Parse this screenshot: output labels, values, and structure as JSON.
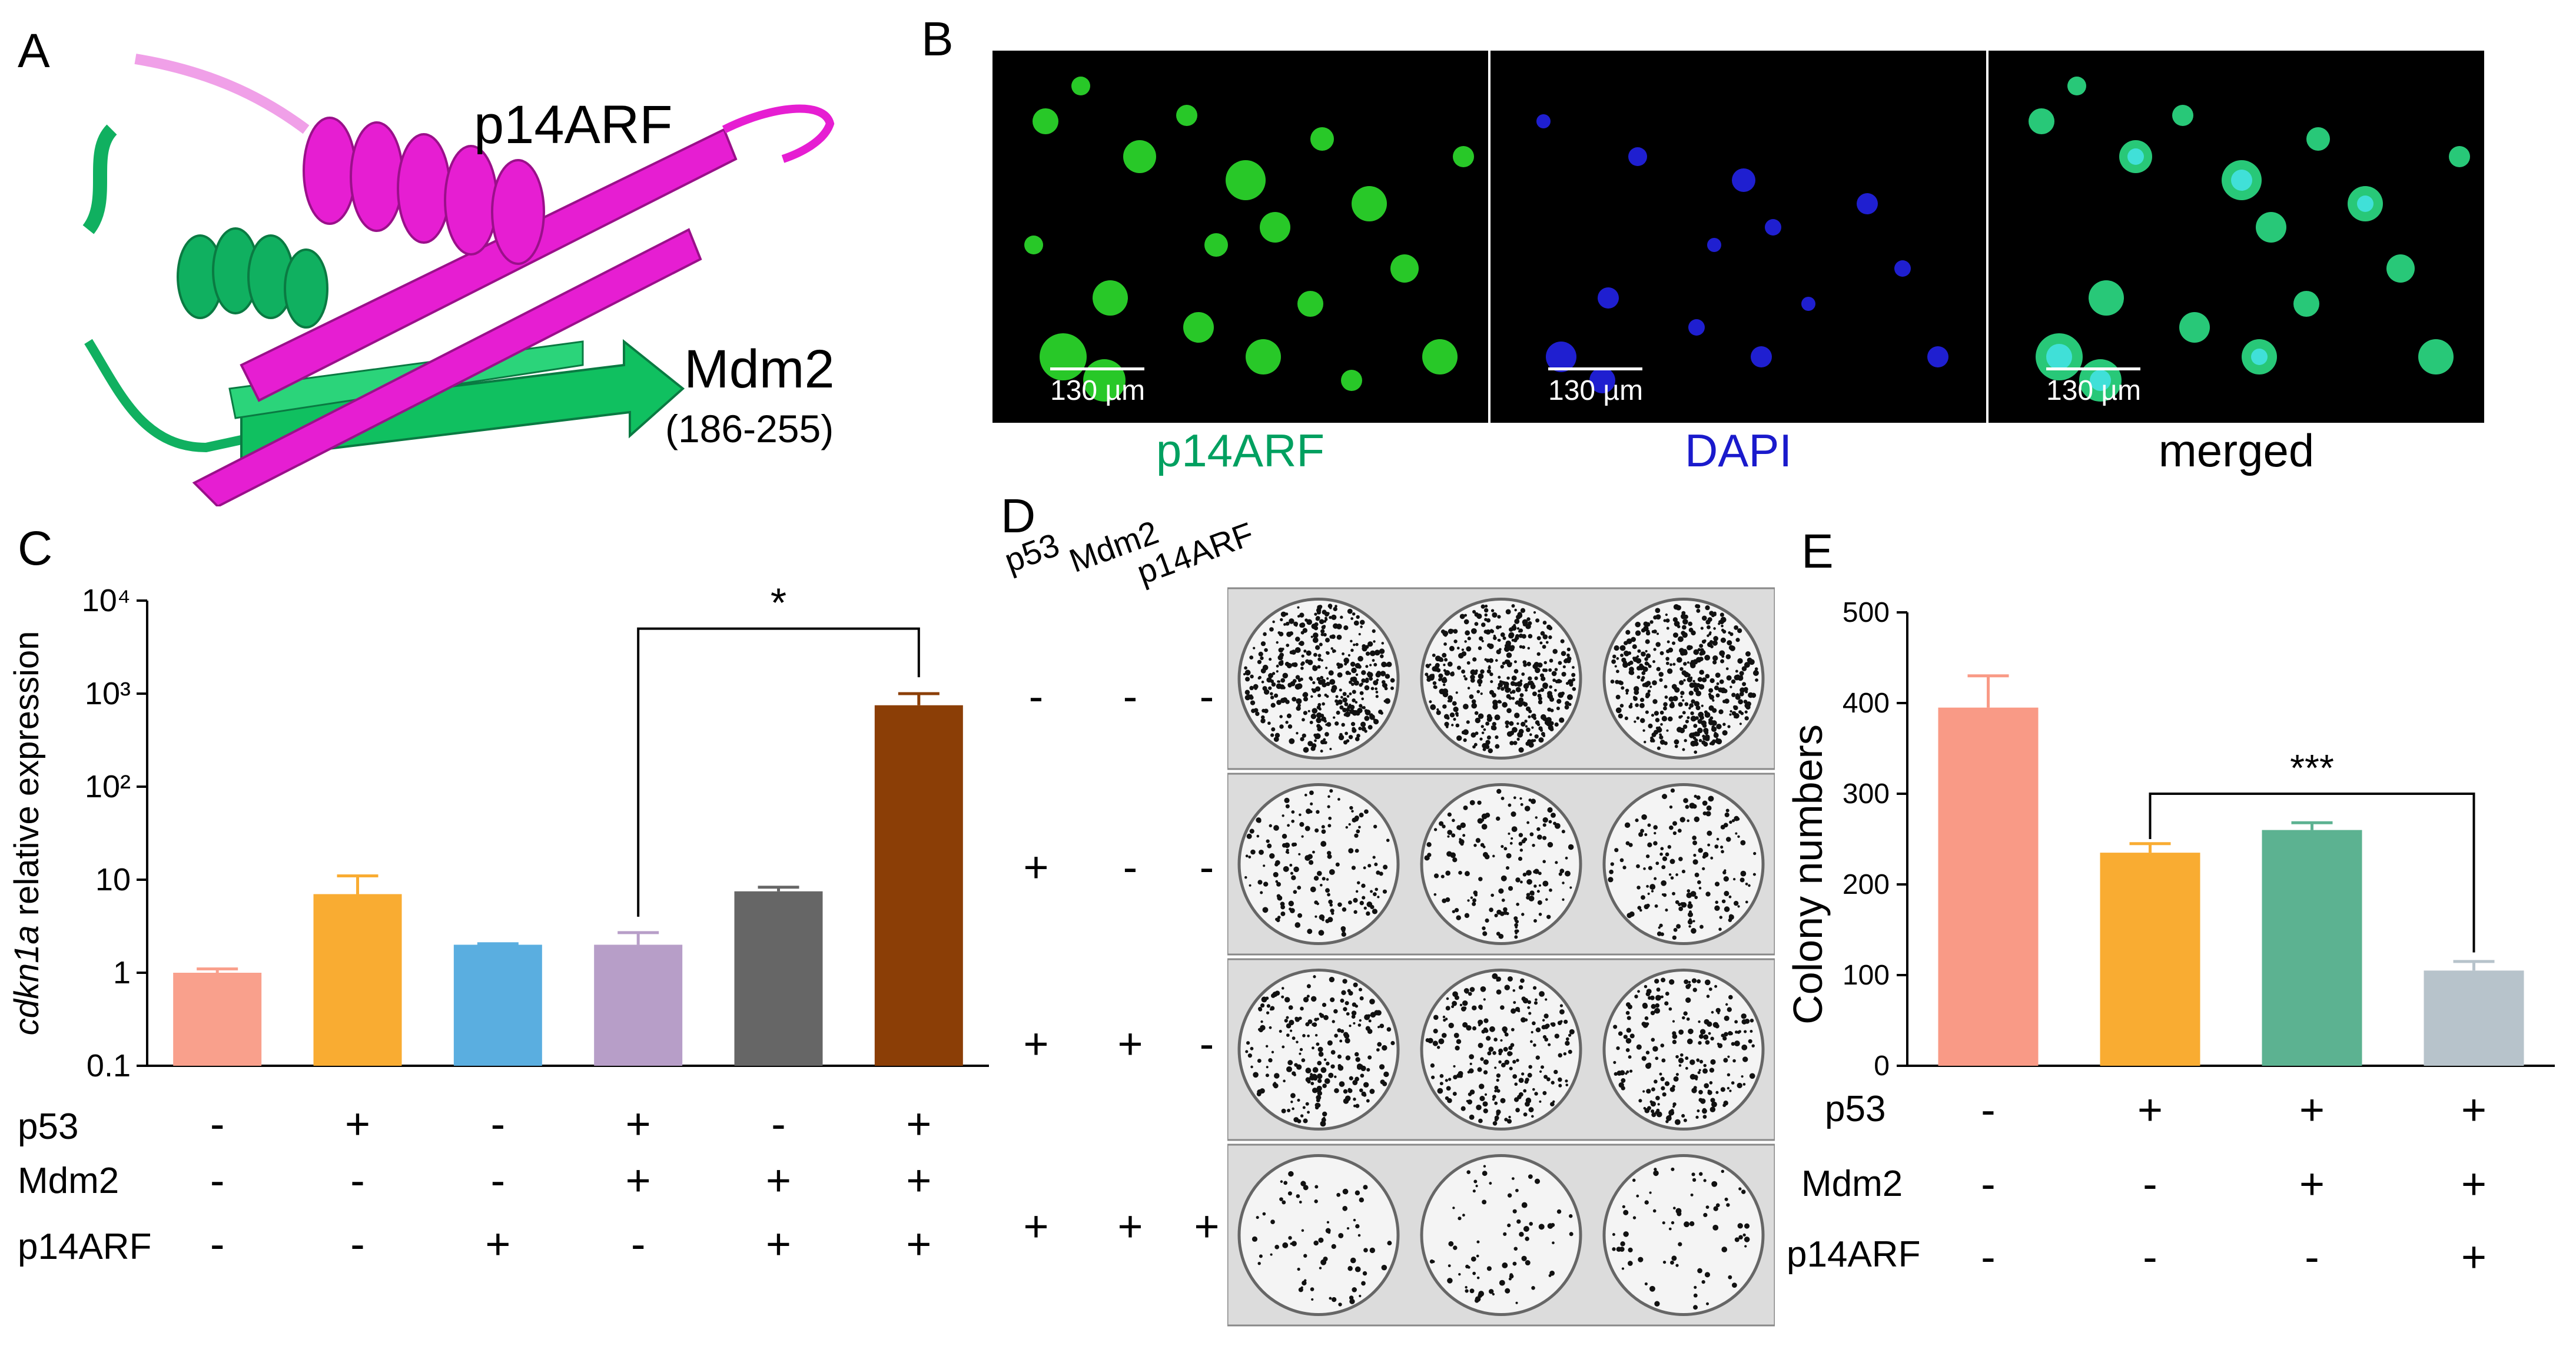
{
  "panels": {
    "A": {
      "letter": "A",
      "labels": {
        "p14arf": "p14ARF",
        "mdm2": "Mdm2",
        "mdm2_range": "(186-255)"
      },
      "colors": {
        "p14arf": "#e61ed2",
        "mdm2": "#10b060"
      }
    },
    "B": {
      "letter": "B",
      "images": [
        {
          "caption": "p14ARF",
          "scale": "130 µm",
          "caption_color": "#00a060"
        },
        {
          "caption": "DAPI",
          "scale": "130 µm",
          "caption_color": "#1a1acc"
        },
        {
          "caption": "merged",
          "scale": "130 µm",
          "caption_color": "#000000"
        }
      ]
    },
    "C": {
      "letter": "C",
      "significance": "*",
      "row_labels": [
        "p53",
        "Mdm2",
        "p14ARF"
      ],
      "conditions": [
        [
          "-",
          "-",
          "-"
        ],
        [
          "+",
          "-",
          "-"
        ],
        [
          "-",
          "-",
          "+"
        ],
        [
          "+",
          "+",
          "-"
        ],
        [
          "-",
          "+",
          "+"
        ],
        [
          "+",
          "+",
          "+"
        ]
      ]
    },
    "D": {
      "letter": "D",
      "col_labels": [
        "p53",
        "Mdm2",
        "p14ARF"
      ],
      "rows": [
        [
          "-",
          "-",
          "-"
        ],
        [
          "+",
          "-",
          "-"
        ],
        [
          "+",
          "+",
          "-"
        ],
        [
          "+",
          "+",
          "+"
        ]
      ]
    },
    "E": {
      "letter": "E",
      "significance": "***",
      "row_labels": [
        "p53",
        "Mdm2",
        "p14ARF"
      ],
      "conditions": [
        [
          "-",
          "-",
          "-"
        ],
        [
          "+",
          "-",
          "-"
        ],
        [
          "+",
          "+",
          "-"
        ],
        [
          "+",
          "+",
          "+"
        ]
      ]
    }
  },
  "chart_data": [
    {
      "panel": "C",
      "type": "bar",
      "ylabel_italic": "cdkn1a",
      "ylabel": "relative expression",
      "yscale": "log",
      "ylim": [
        0.1,
        10000
      ],
      "yticks": [
        "0.1",
        "1",
        "10",
        "10²",
        "10³",
        "10⁴"
      ],
      "values": [
        1.0,
        7.0,
        2.0,
        2.0,
        7.5,
        750
      ],
      "errors": [
        0.1,
        4.0,
        0.05,
        0.7,
        0.8,
        250
      ],
      "colors": [
        "#f9a08c",
        "#f9ac32",
        "#5aaee0",
        "#b79ec8",
        "#666666",
        "#8b3e06"
      ]
    },
    {
      "panel": "E",
      "type": "bar",
      "ylabel": "Colony numbers",
      "ylim": [
        0,
        500
      ],
      "yticks": [
        "0",
        "100",
        "200",
        "300",
        "400",
        "500"
      ],
      "values": [
        395,
        235,
        260,
        105
      ],
      "errors": [
        35,
        10,
        8,
        10
      ],
      "colors": [
        "#f99a86",
        "#f9ac32",
        "#5cb291",
        "#b7c3cb"
      ]
    }
  ]
}
